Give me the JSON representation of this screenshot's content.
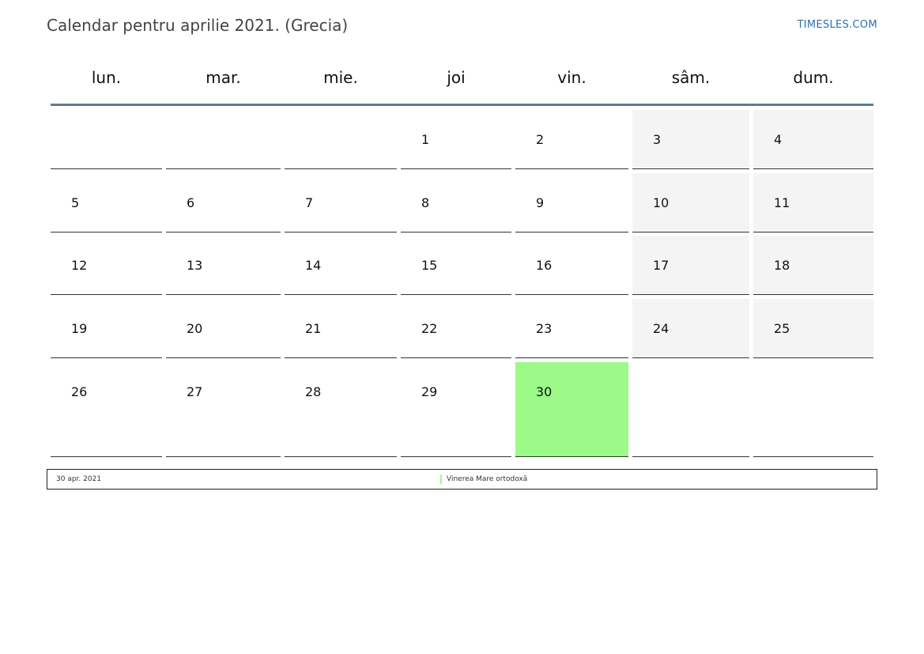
{
  "header": {
    "title": "Calendar pentru aprilie 2021. (Grecia)",
    "brand": "TIMESLES.COM"
  },
  "colors": {
    "weekend_bg": "#f4f4f4",
    "holiday_bg": "#9bfa88",
    "header_rule": "#5c7a9c",
    "brand": "#2a6fad"
  },
  "calendar": {
    "weekdays": [
      "lun.",
      "mar.",
      "mie.",
      "joi",
      "vin.",
      "sâm.",
      "dum."
    ],
    "weeks": [
      [
        "",
        "",
        "",
        "1",
        "2",
        "3",
        "4"
      ],
      [
        "5",
        "6",
        "7",
        "8",
        "9",
        "10",
        "11"
      ],
      [
        "12",
        "13",
        "14",
        "15",
        "16",
        "17",
        "18"
      ],
      [
        "19",
        "20",
        "21",
        "22",
        "23",
        "24",
        "25"
      ],
      [
        "26",
        "27",
        "28",
        "29",
        "30",
        "",
        ""
      ]
    ],
    "weekend_columns": [
      5,
      6
    ],
    "holiday_day": "30"
  },
  "legend": {
    "date": "30 apr. 2021",
    "holiday_name": "Vinerea Mare ortodoxă"
  }
}
